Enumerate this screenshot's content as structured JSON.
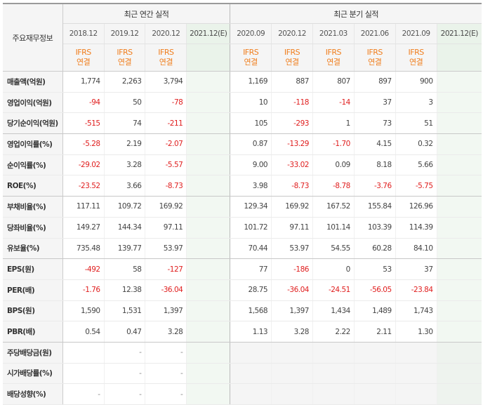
{
  "header": {
    "corner_label": "주요재무정보",
    "annual_group": "최근 연간 실적",
    "quarterly_group": "최근 분기 실적",
    "periods": [
      {
        "label": "2018.12",
        "group": "annual",
        "estimate": false
      },
      {
        "label": "2019.12",
        "group": "annual",
        "estimate": false
      },
      {
        "label": "2020.12",
        "group": "annual",
        "estimate": false
      },
      {
        "label": "2021.12(E)",
        "group": "annual",
        "estimate": true
      },
      {
        "label": "2020.09",
        "group": "quarterly",
        "estimate": false
      },
      {
        "label": "2020.12",
        "group": "quarterly",
        "estimate": false
      },
      {
        "label": "2021.03",
        "group": "quarterly",
        "estimate": false
      },
      {
        "label": "2021.06",
        "group": "quarterly",
        "estimate": false
      },
      {
        "label": "2021.09",
        "group": "quarterly",
        "estimate": false
      },
      {
        "label": "2021.12(E)",
        "group": "quarterly",
        "estimate": true
      }
    ],
    "ifrs_line1": "IFRS",
    "ifrs_line2": "연결"
  },
  "rows": [
    {
      "label": "매출액(억원)",
      "values": [
        "1,774",
        "2,263",
        "3,794",
        "",
        "1,169",
        "887",
        "807",
        "897",
        "900",
        ""
      ]
    },
    {
      "label": "영업이익(억원)",
      "values": [
        "-94",
        "50",
        "-78",
        "",
        "10",
        "-118",
        "-14",
        "37",
        "3",
        ""
      ]
    },
    {
      "label": "당기순이익(억원)",
      "values": [
        "-515",
        "74",
        "-211",
        "",
        "105",
        "-293",
        "1",
        "73",
        "51",
        ""
      ],
      "section_end": true
    },
    {
      "label": "영업이익률(%)",
      "values": [
        "-5.28",
        "2.19",
        "-2.07",
        "",
        "0.87",
        "-13.29",
        "-1.70",
        "4.15",
        "0.32",
        ""
      ]
    },
    {
      "label": "순이익률(%)",
      "values": [
        "-29.02",
        "3.28",
        "-5.57",
        "",
        "9.00",
        "-33.02",
        "0.09",
        "8.18",
        "5.66",
        ""
      ]
    },
    {
      "label": "ROE(%)",
      "values": [
        "-23.52",
        "3.66",
        "-8.73",
        "",
        "3.98",
        "-8.73",
        "-8.78",
        "-3.76",
        "-5.75",
        ""
      ],
      "section_end": true
    },
    {
      "label": "부채비율(%)",
      "values": [
        "117.11",
        "109.72",
        "169.92",
        "",
        "129.34",
        "169.92",
        "167.52",
        "155.84",
        "126.96",
        ""
      ]
    },
    {
      "label": "당좌비율(%)",
      "values": [
        "149.27",
        "144.34",
        "97.11",
        "",
        "101.72",
        "97.11",
        "101.14",
        "103.39",
        "114.39",
        ""
      ]
    },
    {
      "label": "유보율(%)",
      "values": [
        "735.48",
        "139.77",
        "53.97",
        "",
        "70.44",
        "53.97",
        "54.55",
        "60.28",
        "84.10",
        ""
      ],
      "section_end": true
    },
    {
      "label": "EPS(원)",
      "values": [
        "-492",
        "58",
        "-127",
        "",
        "77",
        "-186",
        "0",
        "53",
        "37",
        ""
      ]
    },
    {
      "label": "PER(배)",
      "values": [
        "-1.76",
        "12.38",
        "-36.04",
        "",
        "28.75",
        "-36.04",
        "-24.51",
        "-56.05",
        "-23.84",
        ""
      ]
    },
    {
      "label": "BPS(원)",
      "values": [
        "1,590",
        "1,531",
        "1,397",
        "",
        "1,568",
        "1,397",
        "1,434",
        "1,489",
        "1,743",
        ""
      ]
    },
    {
      "label": "PBR(배)",
      "values": [
        "0.54",
        "0.47",
        "3.28",
        "",
        "1.13",
        "3.28",
        "2.22",
        "2.11",
        "1.30",
        ""
      ],
      "section_end": true
    },
    {
      "label": "주당배당금(원)",
      "values": [
        "",
        "-",
        "-",
        "",
        "",
        "",
        "",
        "",
        "",
        ""
      ],
      "quarter_gray": true
    },
    {
      "label": "시가배당률(%)",
      "values": [
        "",
        "-",
        "-",
        "",
        "",
        "",
        "",
        "",
        "",
        ""
      ],
      "quarter_gray": true
    },
    {
      "label": "배당성향(%)",
      "values": [
        "-",
        "-",
        "-",
        "",
        "",
        "",
        "",
        "",
        "",
        ""
      ],
      "quarter_gray": true
    }
  ],
  "colors": {
    "negative": "#e01e1e",
    "ifrs": "#f07e1e",
    "estimate_bg": "#eaf3ea",
    "label_bg": "#f5f5f5"
  }
}
